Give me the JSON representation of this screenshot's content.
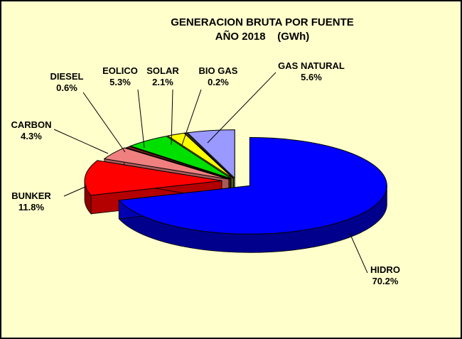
{
  "chart_data": {
    "type": "pie",
    "title": "GENERACION BRUTA POR FUENTE",
    "subtitle": "AÑO 2018    (GWh)",
    "style": "3d-exploded",
    "background": "#ffffcc",
    "slices": [
      {
        "name": "HIDRO",
        "percent_label": "70.2%",
        "value": 70.2,
        "color": "#0000ff"
      },
      {
        "name": "BUNKER",
        "percent_label": "11.8%",
        "value": 11.8,
        "color": "#ff0000"
      },
      {
        "name": "CARBON",
        "percent_label": "4.3%",
        "value": 4.3,
        "color": "#f08080"
      },
      {
        "name": "DIESEL",
        "percent_label": "0.6%",
        "value": 0.6,
        "color": "#7b1f1f"
      },
      {
        "name": "EOLICO",
        "percent_label": "5.3%",
        "value": 5.3,
        "color": "#00e000"
      },
      {
        "name": "SOLAR",
        "percent_label": "2.1%",
        "value": 2.1,
        "color": "#ffff00"
      },
      {
        "name": "BIO GAS",
        "percent_label": "0.2%",
        "value": 0.2,
        "color": "#808000"
      },
      {
        "name": "GAS NATURAL",
        "percent_label": "5.6%",
        "value": 5.6,
        "color": "#9999ff"
      }
    ]
  }
}
